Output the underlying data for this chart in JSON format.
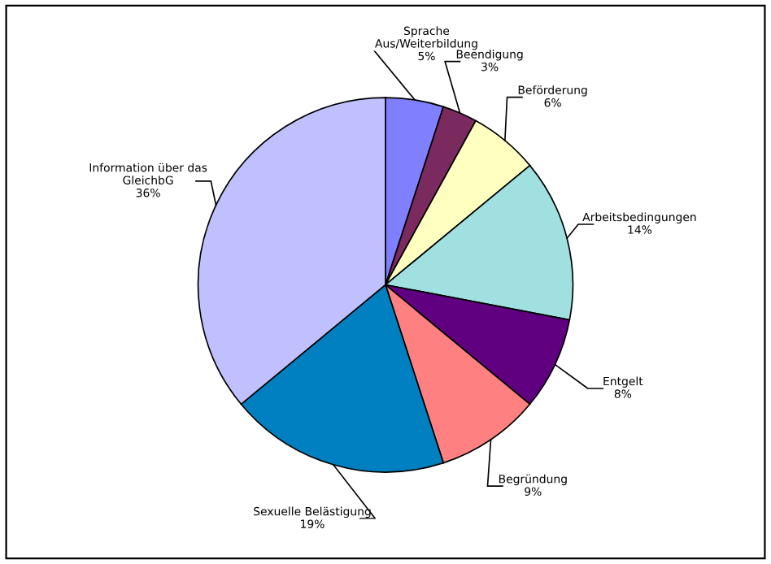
{
  "chart_data": {
    "type": "pie",
    "categories": [
      "Sprache\nAus/Weiterbildung",
      "Beendigung",
      "Beförderung",
      "Arbeitsbedingungen",
      "Entgelt",
      "Begründung",
      "Sexuelle Belästigung",
      "Information über das\nGleichbG"
    ],
    "values": [
      5,
      3,
      6,
      14,
      8,
      9,
      19,
      36
    ],
    "value_labels": [
      "5%",
      "3%",
      "6%",
      "14%",
      "8%",
      "9%",
      "19%",
      "36%"
    ],
    "colors": [
      "#8080ff",
      "#7a2a5e",
      "#ffffc0",
      "#a0e0e0",
      "#600080",
      "#ff8080",
      "#0080c0",
      "#c0c0ff"
    ],
    "legend": false
  }
}
